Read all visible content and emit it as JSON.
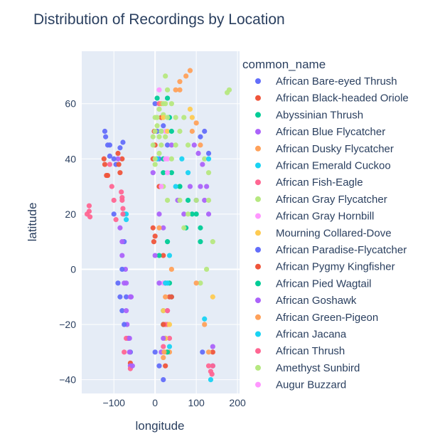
{
  "chart_data": {
    "type": "scatter",
    "title": "Distribution of Recordings by Location",
    "xlabel": "longitude",
    "ylabel": "latitude",
    "xlim": [
      -178,
      205
    ],
    "ylim": [
      -45,
      79
    ],
    "xticks": [
      -100,
      0,
      100,
      200
    ],
    "xtick_labels": [
      "−100",
      "0",
      "100",
      "200"
    ],
    "yticks": [
      -40,
      -20,
      0,
      20,
      40,
      60
    ],
    "ytick_labels": [
      "−40",
      "−20",
      "0",
      "20",
      "40",
      "60"
    ],
    "grid": true,
    "legend_title": "common_name",
    "legend_position": "right",
    "series": [
      {
        "name": "African Bare-eyed Thrush",
        "color": "#636efa",
        "points": [
          [
            -120,
            48
          ],
          [
            -115,
            45
          ],
          [
            -110,
            41
          ],
          [
            -122,
            50
          ],
          [
            -85,
            44
          ],
          [
            -78,
            46
          ],
          [
            -95,
            38
          ],
          [
            -70,
            -10
          ],
          [
            -60,
            -30
          ],
          [
            -75,
            10
          ],
          [
            -100,
            20
          ],
          [
            10,
            40
          ],
          [
            20,
            52
          ],
          [
            30,
            45
          ],
          [
            120,
            50
          ],
          [
            130,
            42
          ],
          [
            0,
            60
          ],
          [
            5,
            50
          ],
          [
            -80,
            -15
          ],
          [
            140,
            -35
          ],
          [
            115,
            -30
          ],
          [
            -65,
            -25
          ]
        ]
      },
      {
        "name": "African Black-headed Oriole",
        "color": "#ef553b",
        "points": [
          [
            -122,
            38
          ],
          [
            -118,
            34
          ],
          [
            -124,
            40
          ],
          [
            -80,
            40
          ],
          [
            -85,
            35
          ],
          [
            -5,
            40
          ],
          [
            0,
            45
          ],
          [
            -3,
            10
          ],
          [
            20,
            5
          ],
          [
            35,
            -10
          ],
          [
            25,
            -25
          ],
          [
            10,
            30
          ],
          [
            140,
            -30
          ],
          [
            -60,
            -34
          ],
          [
            15,
            55
          ],
          [
            -2,
            50
          ]
        ]
      },
      {
        "name": "Abyssinian Thrush",
        "color": "#00cc96",
        "points": [
          [
            10,
            5
          ],
          [
            30,
            10
          ],
          [
            35,
            -5
          ],
          [
            20,
            -20
          ],
          [
            40,
            35
          ],
          [
            60,
            30
          ],
          [
            80,
            25
          ],
          [
            100,
            20
          ],
          [
            110,
            15
          ],
          [
            35,
            55
          ],
          [
            5,
            62
          ],
          [
            30,
            62
          ],
          [
            20,
            40
          ],
          [
            75,
            15
          ]
        ]
      },
      {
        "name": "African Blue Flycatcher",
        "color": "#ab63fa",
        "points": [
          [
            -75,
            -5
          ],
          [
            -70,
            -15
          ],
          [
            -65,
            -25
          ],
          [
            -60,
            -35
          ],
          [
            -72,
            0
          ],
          [
            -68,
            -20
          ],
          [
            -62,
            -30
          ],
          [
            -58,
            -10
          ],
          [
            -80,
            5
          ],
          [
            -85,
            15
          ],
          [
            -90,
            40
          ],
          [
            -5,
            35
          ],
          [
            10,
            20
          ],
          [
            20,
            15
          ],
          [
            25,
            -5
          ],
          [
            30,
            -15
          ],
          [
            110,
            30
          ],
          [
            120,
            25
          ],
          [
            130,
            20
          ],
          [
            95,
            45
          ],
          [
            55,
            25
          ],
          [
            70,
            20
          ],
          [
            85,
            30
          ],
          [
            15,
            -30
          ],
          [
            40,
            45
          ],
          [
            140,
            -28
          ]
        ]
      },
      {
        "name": "African Dusky Flycatcher",
        "color": "#ffa15a",
        "points": [
          [
            25,
            -10
          ],
          [
            30,
            -20
          ],
          [
            35,
            -30
          ],
          [
            20,
            -32
          ],
          [
            40,
            0
          ],
          [
            60,
            65
          ],
          [
            75,
            70
          ],
          [
            85,
            72
          ],
          [
            90,
            50
          ],
          [
            100,
            53
          ],
          [
            110,
            45
          ],
          [
            10,
            15
          ],
          [
            130,
            -30
          ]
        ]
      },
      {
        "name": "African Emerald Cuckoo",
        "color": "#19d3f3",
        "points": [
          [
            20,
            -15
          ],
          [
            25,
            -25
          ],
          [
            30,
            -5
          ],
          [
            35,
            5
          ],
          [
            40,
            -10
          ],
          [
            120,
            -18
          ],
          [
            135,
            -40
          ],
          [
            -70,
            20
          ],
          [
            15,
            50
          ],
          [
            5,
            40
          ],
          [
            65,
            40
          ],
          [
            80,
            35
          ]
        ]
      },
      {
        "name": "African Fish-Eagle",
        "color": "#ff6692",
        "points": [
          [
            -160,
            21
          ],
          [
            -158,
            19
          ],
          [
            -110,
            38
          ],
          [
            -105,
            30
          ],
          [
            -100,
            25
          ],
          [
            -95,
            18
          ],
          [
            -80,
            26
          ],
          [
            -78,
            22
          ],
          [
            -82,
            28
          ],
          [
            -70,
            -25
          ],
          [
            -75,
            -30
          ],
          [
            -60,
            -36
          ],
          [
            25,
            -20
          ],
          [
            35,
            -25
          ],
          [
            140,
            -35
          ],
          [
            138,
            -38
          ],
          [
            10,
            60
          ]
        ]
      },
      {
        "name": "African Gray Flycatcher",
        "color": "#b6e880",
        "points": [
          [
            0,
            50
          ],
          [
            5,
            52
          ],
          [
            10,
            48
          ],
          [
            15,
            45
          ],
          [
            -5,
            45
          ],
          [
            0,
            55
          ],
          [
            10,
            58
          ],
          [
            20,
            56
          ],
          [
            25,
            60
          ],
          [
            30,
            65
          ],
          [
            40,
            60
          ],
          [
            50,
            55
          ],
          [
            60,
            50
          ],
          [
            70,
            55
          ],
          [
            80,
            45
          ],
          [
            120,
            40
          ],
          [
            130,
            25
          ],
          [
            140,
            10
          ],
          [
            110,
            -5
          ],
          [
            125,
            0
          ],
          [
            180,
            65
          ],
          [
            20,
            30
          ],
          [
            30,
            25
          ],
          [
            60,
            25
          ],
          [
            0,
            40
          ],
          [
            25,
            70
          ]
        ]
      },
      {
        "name": "African Gray Hornbill",
        "color": "#ff97ff",
        "points": [
          [
            15,
            30
          ],
          [
            20,
            -5
          ],
          [
            30,
            40
          ],
          [
            25,
            50
          ]
        ]
      },
      {
        "name": "Mourning Collared-Dove",
        "color": "#fecb52",
        "points": [
          [
            25,
            -25
          ],
          [
            28,
            -30
          ],
          [
            20,
            -15
          ],
          [
            35,
            -20
          ],
          [
            90,
            55
          ],
          [
            85,
            58
          ],
          [
            140,
            -10
          ],
          [
            20,
            55
          ],
          [
            30,
            50
          ]
        ]
      },
      {
        "name": "African Paradise-Flycatcher",
        "color": "#636efa",
        "points": [
          [
            -90,
            -5
          ],
          [
            -85,
            -10
          ],
          [
            -80,
            0
          ],
          [
            -75,
            -20
          ],
          [
            0,
            -30
          ],
          [
            10,
            -35
          ],
          [
            20,
            -40
          ],
          [
            -100,
            40
          ],
          [
            100,
            25
          ],
          [
            110,
            48
          ],
          [
            -110,
            45
          ]
        ]
      },
      {
        "name": "African Pygmy Kingfisher",
        "color": "#ef553b",
        "points": [
          [
            -90,
            42
          ],
          [
            -88,
            38
          ],
          [
            -5,
            15
          ],
          [
            0,
            12
          ],
          [
            20,
            -20
          ],
          [
            25,
            -35
          ],
          [
            40,
            -10
          ],
          [
            -115,
            34
          ]
        ]
      },
      {
        "name": "African Pied Wagtail",
        "color": "#00cc96",
        "points": [
          [
            20,
            35
          ],
          [
            30,
            -30
          ],
          [
            40,
            50
          ],
          [
            60,
            30
          ],
          [
            90,
            20
          ],
          [
            110,
            10
          ]
        ]
      },
      {
        "name": "African Goshawk",
        "color": "#ab63fa",
        "points": [
          [
            -60,
            -10
          ],
          [
            -62,
            -25
          ],
          [
            -55,
            -35
          ],
          [
            -70,
            -5
          ],
          [
            0,
            5
          ],
          [
            10,
            -5
          ],
          [
            20,
            -25
          ],
          [
            105,
            42
          ],
          [
            115,
            38
          ],
          [
            125,
            30
          ],
          [
            -80,
            10
          ]
        ]
      },
      {
        "name": "African Green-Pigeon",
        "color": "#ffa15a",
        "points": [
          [
            50,
            65
          ],
          [
            60,
            68
          ],
          [
            100,
            -5
          ],
          [
            120,
            -20
          ],
          [
            15,
            60
          ],
          [
            22,
            -30
          ]
        ]
      },
      {
        "name": "African Jacana",
        "color": "#19d3f3",
        "points": [
          [
            -75,
            20
          ],
          [
            -70,
            18
          ],
          [
            25,
            -5
          ],
          [
            35,
            -28
          ],
          [
            50,
            30
          ],
          [
            130,
            40
          ]
        ]
      },
      {
        "name": "African Thrush",
        "color": "#ff6692",
        "points": [
          [
            -165,
            20
          ],
          [
            -160,
            23
          ],
          [
            -80,
            25
          ],
          [
            -78,
            20
          ],
          [
            30,
            -15
          ],
          [
            20,
            -28
          ],
          [
            130,
            -35
          ],
          [
            135,
            -37
          ]
        ]
      },
      {
        "name": "Amethyst Sunbird",
        "color": "#b6e880",
        "points": [
          [
            5,
            55
          ],
          [
            15,
            50
          ],
          [
            25,
            48
          ],
          [
            10,
            42
          ],
          [
            0,
            38
          ],
          [
            -5,
            48
          ],
          [
            20,
            60
          ],
          [
            30,
            55
          ],
          [
            40,
            40
          ],
          [
            70,
            15
          ],
          [
            80,
            20
          ],
          [
            100,
            25
          ],
          [
            130,
            35
          ],
          [
            175,
            64
          ],
          [
            50,
            45
          ]
        ]
      },
      {
        "name": "Augur Buzzard",
        "color": "#ff97ff",
        "points": [
          [
            10,
            65
          ],
          [
            25,
            40
          ],
          [
            30,
            35
          ]
        ]
      }
    ]
  }
}
